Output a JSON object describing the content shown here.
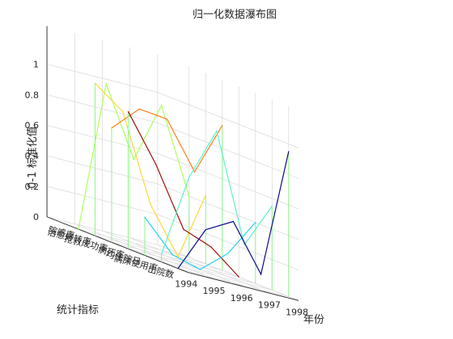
{
  "chart_data": {
    "type": "waterfall-3d",
    "title": "归一化数据瀑布图",
    "xlabel": "年份",
    "ylabel": "统计指标",
    "zlabel": "0-1 标准化值",
    "x_ticks": [
      1994,
      1995,
      1996,
      1997,
      1998
    ],
    "z_ticks": [
      "0",
      "0.2",
      "0.4",
      "0.6",
      "0.8",
      "1"
    ],
    "categories": [
      "院感率",
      "治愈好转率",
      "抢救成功率",
      "病死率",
      "均住院日",
      "病床使用率",
      "出院数"
    ],
    "zlim": [
      0,
      1
    ],
    "series": [
      {
        "name": "院感率",
        "x": [
          1994,
          1995,
          1996,
          1997,
          1998
        ],
        "values": [
          0.0,
          1.0,
          0.55,
          0.95,
          0.4
        ],
        "color": "#adff5c"
      },
      {
        "name": "治愈好转率",
        "x": [
          1994,
          1995,
          1996,
          1997,
          1998
        ],
        "values": [
          1.0,
          0.86,
          0.3,
          0.0,
          0.45
        ],
        "color": "#ffd83a"
      },
      {
        "name": "抢救成功率",
        "x": [
          1994,
          1995,
          1996,
          1997,
          1998
        ],
        "values": [
          0.75,
          0.92,
          0.9,
          0.6,
          0.95
        ],
        "color": "#ff7f1a"
      },
      {
        "name": "病死率",
        "x": [
          1994,
          1995,
          1996,
          1997,
          1998
        ],
        "values": [
          0.9,
          0.6,
          0.22,
          0.15,
          0.0
        ],
        "color": "#9e1010"
      },
      {
        "name": "均住院日",
        "x": [
          1994,
          1995,
          1996,
          1997,
          1998
        ],
        "values": [
          0.25,
          0.05,
          0.0,
          0.15,
          0.4
        ],
        "color": "#27d0f0"
      },
      {
        "name": "病床使用率",
        "x": [
          1994,
          1995,
          1996,
          1997,
          1998
        ],
        "values": [
          0.05,
          0.6,
          0.95,
          0.25,
          0.55
        ],
        "color": "#5ff2c8"
      },
      {
        "name": "出院数",
        "x": [
          1994,
          1995,
          1996,
          1997,
          1998
        ],
        "values": [
          0.0,
          0.3,
          0.4,
          0.1,
          0.95
        ],
        "color": "#0a0a8c"
      }
    ],
    "grid": true
  }
}
